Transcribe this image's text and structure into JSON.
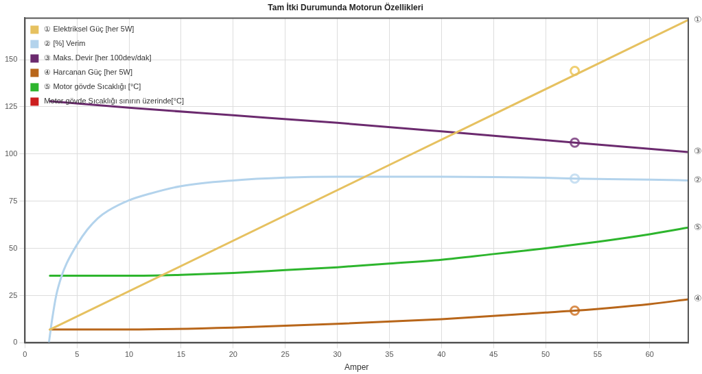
{
  "chart_data": {
    "type": "line",
    "title": "Tam İtki Durumunda Motorun Özellikleri",
    "xlabel": "Amper",
    "xlim": [
      0,
      63.7
    ],
    "xticks": [
      0,
      5,
      10,
      15,
      20,
      25,
      30,
      35,
      40,
      45,
      50,
      55,
      60
    ],
    "ylim": [
      0,
      172
    ],
    "yticks": [
      0,
      25,
      50,
      75,
      100,
      125,
      150
    ],
    "grid": true,
    "legend": "top left",
    "marker": "none",
    "line_style": "solid",
    "series": [
      {
        "name": "① Elektriksel Güç [her 5W]",
        "color": "#e6c160",
        "x": [
          2.4,
          63.7
        ],
        "values": [
          7,
          171
        ]
      },
      {
        "name": "② [%] Verim",
        "color": "#b3d3ec",
        "x": [
          2.3,
          2.6,
          3,
          3.5,
          4,
          5,
          6,
          7,
          8,
          10,
          12,
          15,
          20,
          25,
          30,
          35,
          40,
          45,
          50,
          52.8,
          55,
          60,
          63.7
        ],
        "values": [
          0,
          12,
          25,
          35,
          42,
          52,
          60,
          66,
          70,
          75.5,
          79,
          83,
          86,
          87.5,
          88,
          88,
          88,
          87.8,
          87.4,
          87,
          86.8,
          86.4,
          86
        ]
      },
      {
        "name": "③ Maks. Devir [her 100dev/dak]",
        "color": "#6b2a6e",
        "x": [
          2.4,
          10,
          20,
          30,
          40,
          52.8,
          63.7
        ],
        "values": [
          128,
          124.5,
          120.5,
          116.5,
          112,
          106,
          101
        ]
      },
      {
        "name": "④ Harcanan Güç [her 5W]",
        "color": "#b8661a",
        "x": [
          2.4,
          10,
          20,
          30,
          40,
          50,
          52.8,
          60,
          63.7
        ],
        "values": [
          7,
          7,
          8,
          10,
          12.5,
          16,
          17,
          20.5,
          23
        ]
      },
      {
        "name": "⑤ Motor gövde Sıcaklığı [°C]",
        "color": "#2db52d",
        "x": [
          2.4,
          10,
          15,
          20,
          25,
          30,
          35,
          40,
          45,
          50,
          55,
          60,
          63.7
        ],
        "values": [
          35.5,
          35.5,
          36,
          37,
          38.5,
          40,
          42,
          44,
          47,
          50,
          53.5,
          57.5,
          61
        ]
      },
      {
        "name": "Motor gövde Sıcaklığı sınırın üzerinde[°C]",
        "color": "#cc1e1e"
      },
      {
        "type": "scatter",
        "marker": "circle",
        "color": "#f0cf72",
        "x": [
          52.8
        ],
        "values": [
          144
        ]
      },
      {
        "type": "scatter",
        "marker": "circle",
        "color": "#8e5a92",
        "x": [
          52.8
        ],
        "values": [
          106
        ]
      },
      {
        "type": "scatter",
        "marker": "circle",
        "color": "#c9e0f2",
        "x": [
          52.8
        ],
        "values": [
          87
        ]
      },
      {
        "type": "scatter",
        "marker": "circle",
        "color": "#d98e4e",
        "x": [
          52.8
        ],
        "values": [
          17
        ]
      }
    ],
    "annotations": [
      "①",
      "②",
      "③",
      "④",
      "⑤"
    ]
  }
}
